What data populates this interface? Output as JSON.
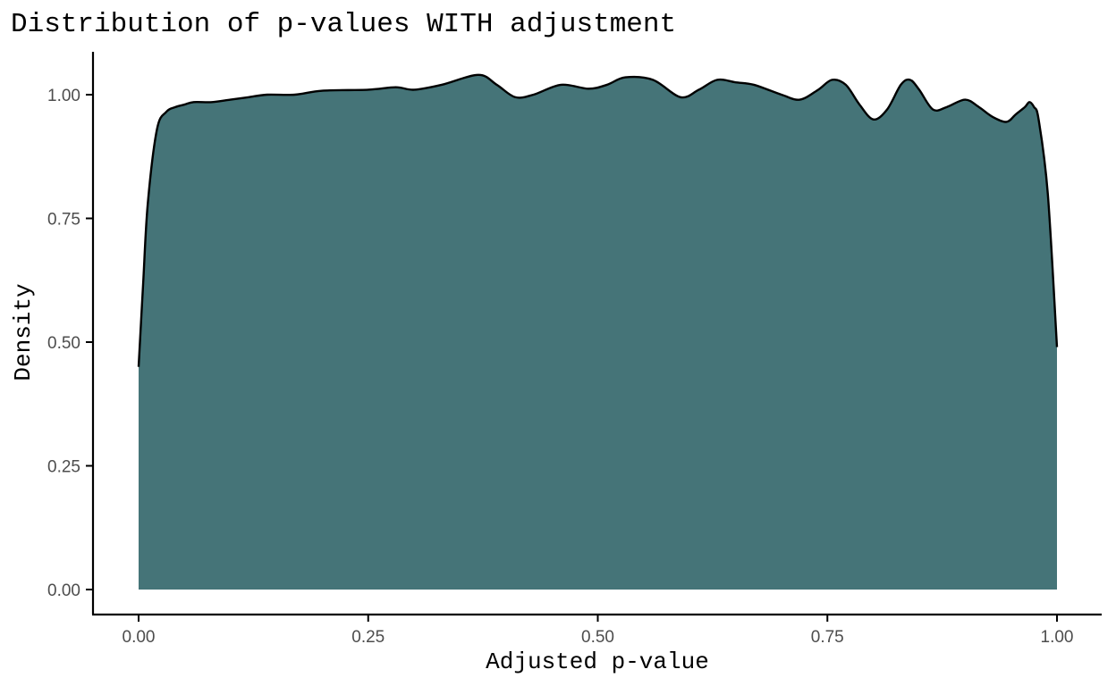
{
  "chart_data": {
    "type": "area",
    "title": "Distribution of p-values WITH adjustment",
    "xlabel": "Adjusted p-value",
    "ylabel": "Density",
    "xlim": [
      -0.1,
      1.05
    ],
    "ylim": [
      -0.05,
      1.09
    ],
    "xticks": [
      0.0,
      0.25,
      0.5,
      0.75,
      1.0
    ],
    "xtick_labels": [
      "0.00",
      "0.25",
      "0.50",
      "0.75",
      "1.00"
    ],
    "yticks": [
      0.0,
      0.25,
      0.5,
      0.75,
      1.0
    ],
    "ytick_labels": [
      "0.00",
      "0.25",
      "0.50",
      "0.75",
      "1.00"
    ],
    "grid": false,
    "fill_color": "#457478",
    "line_color": "#000000",
    "x": [
      0.0,
      0.005,
      0.01,
      0.02,
      0.03,
      0.04,
      0.05,
      0.06,
      0.08,
      0.1,
      0.12,
      0.14,
      0.17,
      0.2,
      0.25,
      0.28,
      0.3,
      0.33,
      0.37,
      0.39,
      0.41,
      0.43,
      0.46,
      0.49,
      0.51,
      0.53,
      0.56,
      0.59,
      0.61,
      0.63,
      0.65,
      0.67,
      0.7,
      0.72,
      0.74,
      0.755,
      0.77,
      0.785,
      0.8,
      0.815,
      0.83,
      0.84,
      0.85,
      0.865,
      0.88,
      0.9,
      0.915,
      0.93,
      0.945,
      0.955,
      0.965,
      0.97,
      0.975,
      0.98,
      0.99,
      1.0
    ],
    "y": [
      0.45,
      0.62,
      0.78,
      0.93,
      0.965,
      0.975,
      0.98,
      0.985,
      0.985,
      0.99,
      0.995,
      1.0,
      1.0,
      1.008,
      1.01,
      1.015,
      1.01,
      1.02,
      1.04,
      1.02,
      0.995,
      1.0,
      1.02,
      1.012,
      1.02,
      1.035,
      1.03,
      0.995,
      1.01,
      1.03,
      1.025,
      1.02,
      1.0,
      0.99,
      1.01,
      1.03,
      1.02,
      0.98,
      0.95,
      0.97,
      1.02,
      1.03,
      1.01,
      0.97,
      0.975,
      0.99,
      0.975,
      0.955,
      0.945,
      0.96,
      0.975,
      0.985,
      0.975,
      0.95,
      0.8,
      0.49
    ]
  }
}
